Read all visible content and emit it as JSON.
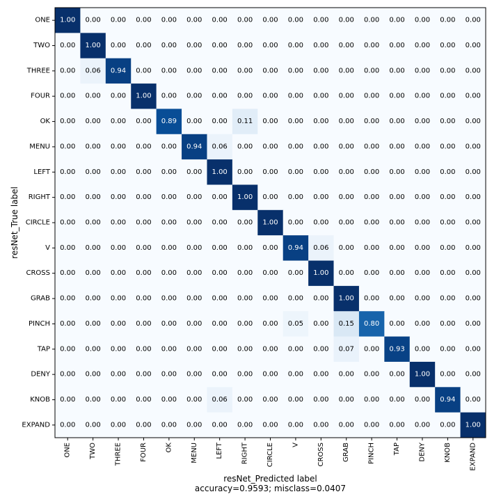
{
  "chart_data": {
    "type": "heatmap",
    "title": "",
    "xlabel": "resNet_Predicted label",
    "ylabel": "resNet_True label",
    "subtitle": "accuracy=0.9593; misclass=0.0407",
    "colormap": "Blues",
    "value_format": "2 decimals",
    "categories": [
      "ONE",
      "TWO",
      "THREE",
      "FOUR",
      "OK",
      "MENU",
      "LEFT",
      "RIGHT",
      "CIRCLE",
      "V",
      "CROSS",
      "GRAB",
      "PINCH",
      "TAP",
      "DENY",
      "KNOB",
      "EXPAND"
    ],
    "matrix": [
      [
        1.0,
        0,
        0,
        0,
        0,
        0,
        0,
        0,
        0,
        0,
        0,
        0,
        0,
        0,
        0,
        0,
        0
      ],
      [
        0,
        1.0,
        0,
        0,
        0,
        0,
        0,
        0,
        0,
        0,
        0,
        0,
        0,
        0,
        0,
        0,
        0
      ],
      [
        0,
        0.06,
        0.94,
        0,
        0,
        0,
        0,
        0,
        0,
        0,
        0,
        0,
        0,
        0,
        0,
        0,
        0
      ],
      [
        0,
        0,
        0,
        1.0,
        0,
        0,
        0,
        0,
        0,
        0,
        0,
        0,
        0,
        0,
        0,
        0,
        0
      ],
      [
        0,
        0,
        0,
        0,
        0.89,
        0,
        0,
        0.11,
        0,
        0,
        0,
        0,
        0,
        0,
        0,
        0,
        0
      ],
      [
        0,
        0,
        0,
        0,
        0,
        0.94,
        0.06,
        0,
        0,
        0,
        0,
        0,
        0,
        0,
        0,
        0,
        0
      ],
      [
        0,
        0,
        0,
        0,
        0,
        0,
        1.0,
        0,
        0,
        0,
        0,
        0,
        0,
        0,
        0,
        0,
        0
      ],
      [
        0,
        0,
        0,
        0,
        0,
        0,
        0,
        1.0,
        0,
        0,
        0,
        0,
        0,
        0,
        0,
        0,
        0
      ],
      [
        0,
        0,
        0,
        0,
        0,
        0,
        0,
        0,
        1.0,
        0,
        0,
        0,
        0,
        0,
        0,
        0,
        0
      ],
      [
        0,
        0,
        0,
        0,
        0,
        0,
        0,
        0,
        0,
        0.94,
        0.06,
        0,
        0,
        0,
        0,
        0,
        0
      ],
      [
        0,
        0,
        0,
        0,
        0,
        0,
        0,
        0,
        0,
        0,
        1.0,
        0,
        0,
        0,
        0,
        0,
        0
      ],
      [
        0,
        0,
        0,
        0,
        0,
        0,
        0,
        0,
        0,
        0,
        0,
        1.0,
        0,
        0,
        0,
        0,
        0
      ],
      [
        0,
        0,
        0,
        0,
        0,
        0,
        0,
        0,
        0,
        0.05,
        0,
        0.15,
        0.8,
        0,
        0,
        0,
        0
      ],
      [
        0,
        0,
        0,
        0,
        0,
        0,
        0,
        0,
        0,
        0,
        0,
        0.07,
        0,
        0.93,
        0,
        0,
        0
      ],
      [
        0,
        0,
        0,
        0,
        0,
        0,
        0,
        0,
        0,
        0,
        0,
        0,
        0,
        0,
        1.0,
        0,
        0
      ],
      [
        0,
        0,
        0,
        0,
        0,
        0,
        0.06,
        0,
        0,
        0,
        0,
        0,
        0,
        0,
        0,
        0.94,
        0
      ],
      [
        0,
        0,
        0,
        0,
        0,
        0,
        0,
        0,
        0,
        0,
        0,
        0,
        0,
        0,
        0,
        0,
        1.0
      ]
    ]
  }
}
